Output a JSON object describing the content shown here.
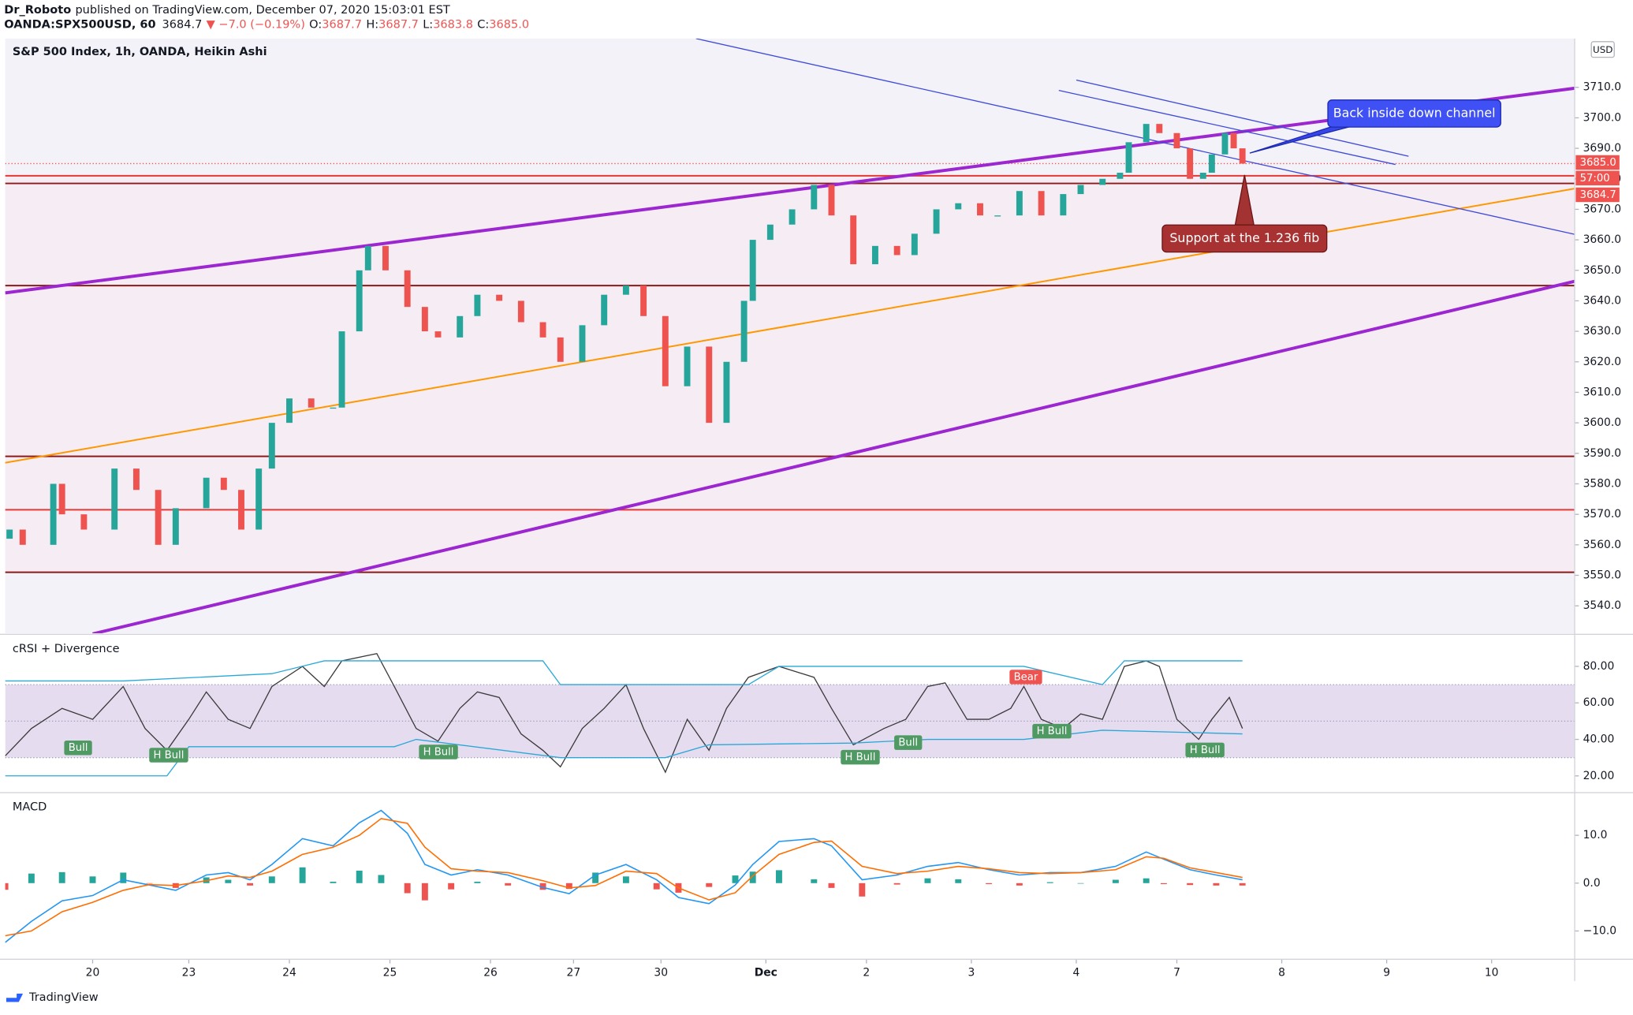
{
  "header": {
    "author": "Dr_Roboto",
    "published": "published on TradingView.com, December 07, 2020 15:03:01 EST",
    "symbol": "OANDA:SPX500USD, 60",
    "last": "3684.7",
    "change": "▼ −7.0 (−0.19%)",
    "ohlc": [
      {
        "label": "O:",
        "value": "3687.7"
      },
      {
        "label": "H:",
        "value": "3687.7"
      },
      {
        "label": "L:",
        "value": "3683.8"
      },
      {
        "label": "C:",
        "value": "3685.0"
      }
    ]
  },
  "footer": "TradingView",
  "chart_data": [
    {
      "type": "candlestick",
      "title": "S&P 500 Index, 1h, OANDA, Heikin Ashi",
      "currency": "USD",
      "up_color": "#26a69a",
      "down_color": "#ef5350",
      "x": [
        1,
        4,
        11,
        13,
        18,
        25,
        30,
        35,
        39,
        46,
        50,
        54,
        58,
        61,
        65,
        70,
        75,
        77,
        81,
        83,
        87,
        92,
        96,
        99,
        104,
        108,
        113,
        118,
        123,
        127,
        132,
        137,
        142,
        146,
        151,
        156,
        161,
        165,
        169,
        171,
        175,
        180,
        185,
        189,
        194,
        199,
        204,
        208,
        213,
        218,
        223,
        227,
        232,
        237,
        242,
        246,
        251,
        255,
        257,
        261,
        264,
        268,
        271,
        274,
        276,
        279,
        281,
        283
      ],
      "open": [
        3562,
        3565,
        3560,
        3580,
        3570,
        3565,
        3585,
        3578,
        3560,
        3572,
        3582,
        3578,
        3565,
        3585,
        3600,
        3608,
        3605,
        3605,
        3630,
        3650,
        3658,
        3650,
        3638,
        3630,
        3628,
        3635,
        3642,
        3640,
        3633,
        3628,
        3620,
        3632,
        3642,
        3645,
        3635,
        3612,
        3625,
        3600,
        3620,
        3640,
        3660,
        3665,
        3670,
        3678,
        3668,
        3652,
        3658,
        3655,
        3662,
        3670,
        3672,
        3668,
        3668,
        3676,
        3668,
        3675,
        3678,
        3680,
        3682,
        3692,
        3698,
        3695,
        3690,
        3680,
        3682,
        3688,
        3695,
        3690
      ],
      "close": [
        3565,
        3560,
        3580,
        3570,
        3565,
        3585,
        3578,
        3560,
        3572,
        3582,
        3578,
        3565,
        3585,
        3600,
        3608,
        3605,
        3605,
        3630,
        3650,
        3658,
        3650,
        3638,
        3630,
        3628,
        3635,
        3642,
        3640,
        3633,
        3628,
        3620,
        3632,
        3642,
        3645,
        3635,
        3612,
        3625,
        3600,
        3620,
        3640,
        3660,
        3665,
        3670,
        3678,
        3668,
        3652,
        3658,
        3655,
        3662,
        3670,
        3672,
        3668,
        3668,
        3676,
        3668,
        3675,
        3678,
        3680,
        3682,
        3692,
        3698,
        3695,
        3690,
        3680,
        3682,
        3688,
        3695,
        3690,
        3685
      ],
      "xlim": [
        0,
        359
      ],
      "xticks": [
        {
          "value": 20,
          "label": "20"
        },
        {
          "value": 42,
          "label": "23"
        },
        {
          "value": 65,
          "label": "24"
        },
        {
          "value": 88,
          "label": "25"
        },
        {
          "value": 111,
          "label": "26"
        },
        {
          "value": 130,
          "label": "27"
        },
        {
          "value": 150,
          "label": "30"
        },
        {
          "value": 174,
          "label": "Dec"
        },
        {
          "value": 197,
          "label": "2"
        },
        {
          "value": 221,
          "label": "3"
        },
        {
          "value": 245,
          "label": "4"
        },
        {
          "value": 268,
          "label": "7"
        },
        {
          "value": 292,
          "label": "8"
        },
        {
          "value": 316,
          "label": "9"
        },
        {
          "value": 340,
          "label": "10"
        }
      ],
      "ylim": [
        3531,
        3726
      ],
      "yticks": [
        {
          "value": 3540,
          "label": "3540.0"
        },
        {
          "value": 3550,
          "label": "3550.0"
        },
        {
          "value": 3560,
          "label": "3560.0"
        },
        {
          "value": 3570,
          "label": "3570.0"
        },
        {
          "value": 3580,
          "label": "3580.0"
        },
        {
          "value": 3590,
          "label": "3590.0"
        },
        {
          "value": 3600,
          "label": "3600.0"
        },
        {
          "value": 3610,
          "label": "3610.0"
        },
        {
          "value": 3620,
          "label": "3620.0"
        },
        {
          "value": 3630,
          "label": "3630.0"
        },
        {
          "value": 3640,
          "label": "3640.0"
        },
        {
          "value": 3650,
          "label": "3650.0"
        },
        {
          "value": 3660,
          "label": "3660.0"
        },
        {
          "value": 3670,
          "label": "3670.0"
        },
        {
          "value": 3680,
          "label": "3680.0"
        },
        {
          "value": 3690,
          "label": "3690.0"
        },
        {
          "value": 3700,
          "label": "3700.0"
        },
        {
          "value": 3710,
          "label": "3710.0"
        }
      ],
      "levels": [
        {
          "value": 3681,
          "color": "#e53935"
        },
        {
          "value": 3678.5,
          "color": "#8b1a1a"
        },
        {
          "value": 3645,
          "color": "#8b1a1a"
        },
        {
          "value": 3589,
          "color": "#8b1a1a"
        },
        {
          "value": 3571.5,
          "color": "#e53935"
        },
        {
          "value": 3551,
          "color": "#8b1a1a"
        }
      ],
      "last_price": 3685,
      "trendlines": [
        {
          "x": [
            0,
            359
          ],
          "y": [
            3642.6,
            3709.7
          ],
          "color": "#9c27d0",
          "width": 3
        },
        {
          "x": [
            20,
            359
          ],
          "y": [
            3530.8,
            3646.4
          ],
          "color": "#9c27d0",
          "width": 3
        },
        {
          "x": [
            0,
            359
          ],
          "y": [
            3586.9,
            3676.8
          ],
          "color": "#ff9800",
          "width": 1.5
        },
        {
          "x": [
            158,
            359
          ],
          "y": [
            3726,
            3661.8
          ],
          "color": "#3f4bd8",
          "width": 1
        },
        {
          "x": [
            245,
            321
          ],
          "y": [
            3712.4,
            3687.4
          ],
          "color": "#3f4bd8",
          "width": 1
        },
        {
          "x": [
            241,
            318
          ],
          "y": [
            3709,
            3684.7
          ],
          "color": "#3f4bd8",
          "width": 1
        }
      ],
      "annotations": [
        "Back inside down channel",
        "Support at the 1.236 fib"
      ],
      "price_tags": [
        "3685.0",
        "57:00",
        "3684.7"
      ]
    },
    {
      "type": "line",
      "title": "cRSI + Divergence",
      "ylim": [
        11.4,
        97
      ],
      "yticks": [
        {
          "value": 20,
          "label": "20.00"
        },
        {
          "value": 40,
          "label": "40.00"
        },
        {
          "value": 60,
          "label": "60.00"
        },
        {
          "value": 80,
          "label": "80.00"
        }
      ],
      "band": [
        30,
        70
      ],
      "midline": 50,
      "band_color": "#e6dcf0",
      "series": [
        {
          "color": "#3a3a3a",
          "x": [
            0,
            6,
            13,
            20,
            27,
            32,
            37,
            42,
            46,
            51,
            56,
            61,
            68,
            73,
            77,
            85,
            89,
            94,
            99,
            104,
            108,
            113,
            118,
            123,
            127,
            132,
            137,
            142,
            146,
            151,
            156,
            161,
            165,
            170,
            177,
            185,
            189,
            194,
            201,
            206,
            211,
            215,
            220,
            225,
            230,
            233,
            237,
            242,
            246,
            251,
            256,
            261,
            264,
            268,
            273,
            276,
            280,
            283
          ],
          "values": [
            31,
            46,
            57,
            51,
            69,
            46,
            34,
            51,
            66,
            51,
            46,
            69,
            80,
            69,
            83,
            87,
            69,
            46,
            39,
            57,
            66,
            63,
            43,
            34,
            25,
            46,
            57,
            70,
            46,
            22,
            51,
            34,
            57,
            74,
            80,
            74,
            57,
            37,
            46,
            51,
            69,
            71,
            51,
            51,
            57,
            69,
            51,
            46,
            54,
            51,
            80,
            83,
            80,
            51,
            40,
            51,
            63,
            46
          ]
        },
        {
          "color": "#29a8d8",
          "x": [
            0,
            27,
            61,
            73,
            123,
            127,
            170,
            177,
            233,
            251,
            256,
            283
          ],
          "values": [
            72,
            72,
            76,
            83,
            83,
            70,
            70,
            80,
            80,
            70,
            83,
            83
          ]
        },
        {
          "color": "#29a8d8",
          "x": [
            0,
            37,
            42,
            89,
            94,
            127,
            151,
            161,
            194,
            211,
            233,
            251,
            283
          ],
          "values": [
            20,
            20,
            36,
            36,
            40,
            30,
            30,
            37,
            38,
            40,
            40,
            45,
            43
          ]
        }
      ],
      "signals": [
        {
          "text": "Bull",
          "color": "#4e9a62"
        },
        {
          "text": "H Bull",
          "color": "#4e9a62"
        },
        {
          "text": "H Bull",
          "color": "#4e9a62"
        },
        {
          "text": "H Bull",
          "color": "#4e9a62"
        },
        {
          "text": "Bull",
          "color": "#4e9a62"
        },
        {
          "text": "H Bull",
          "color": "#4e9a62"
        },
        {
          "text": "H Bull",
          "color": "#4e9a62"
        },
        {
          "text": "Bear",
          "color": "#ef5350"
        }
      ]
    },
    {
      "type": "macd",
      "title": "MACD",
      "ylim": [
        -15.7,
        18.7
      ],
      "yticks": [
        {
          "value": -10,
          "label": "−10.0"
        },
        {
          "value": 0,
          "label": "0.0"
        },
        {
          "value": 10,
          "label": "10.0"
        }
      ],
      "x": [
        0,
        6,
        13,
        20,
        27,
        33,
        39,
        46,
        51,
        56,
        61,
        68,
        75,
        81,
        86,
        92,
        96,
        102,
        108,
        115,
        123,
        129,
        135,
        142,
        149,
        154,
        161,
        167,
        171,
        177,
        185,
        189,
        196,
        204,
        211,
        218,
        225,
        232,
        239,
        246,
        254,
        261,
        265,
        271,
        277,
        283
      ],
      "series": [
        {
          "color": "#2196f3",
          "values": [
            -12.4,
            -8,
            -3.7,
            -2.6,
            0.7,
            -0.4,
            -1.5,
            1.7,
            2.2,
            0.7,
            3.9,
            9.3,
            7.8,
            12.6,
            15.2,
            10.4,
            3.9,
            1.7,
            2.8,
            1.7,
            -0.9,
            -2.2,
            1.7,
            3.9,
            0.7,
            -3,
            -4.3,
            -0.4,
            3.9,
            8.7,
            9.3,
            7.8,
            0.7,
            1.7,
            3.5,
            4.3,
            2.8,
            1.7,
            2.2,
            2.2,
            3.5,
            6.5,
            5,
            2.8,
            1.7,
            0.7
          ]
        },
        {
          "color": "#ff6d00",
          "values": [
            -11,
            -10,
            -6,
            -4,
            -1.5,
            -0.3,
            -0.5,
            0.5,
            1.5,
            1.2,
            2.5,
            6,
            7.5,
            10,
            13.5,
            12.5,
            7.5,
            3,
            2.5,
            2.2,
            0.5,
            -1,
            -0.5,
            2.5,
            2,
            -1,
            -3.5,
            -2,
            1.5,
            6,
            8.5,
            8.8,
            3.5,
            2,
            2.5,
            3.5,
            3,
            2.2,
            2,
            2.2,
            2.8,
            5.5,
            5.2,
            3.2,
            2.2,
            1.2
          ]
        }
      ],
      "histogram": [
        -1.4,
        2,
        2.3,
        1.4,
        2.2,
        -0.1,
        -1,
        1.2,
        0.7,
        -0.5,
        1.4,
        3.3,
        0.3,
        2.6,
        1.7,
        -2.1,
        -3.6,
        -1.3,
        0.3,
        -0.5,
        -1.4,
        -1.2,
        2.2,
        1.4,
        -1.3,
        -2,
        -0.8,
        1.6,
        2.4,
        2.7,
        0.8,
        -1,
        -2.8,
        -0.3,
        1,
        0.8,
        -0.2,
        -0.5,
        0.2,
        0,
        0.7,
        1,
        -0.2,
        -0.4,
        -0.5,
        -0.5
      ],
      "hist_colors": [
        "#26a69a",
        "#ef5350"
      ]
    }
  ]
}
